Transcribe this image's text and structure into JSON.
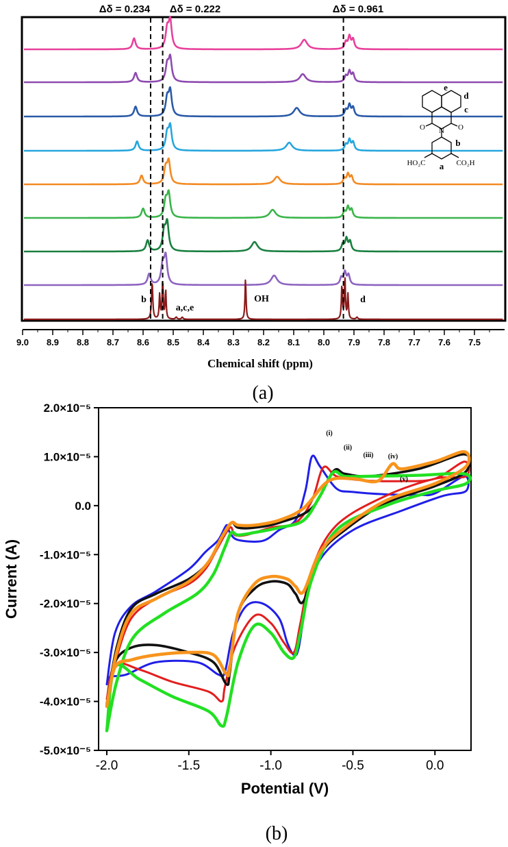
{
  "panel_a": {
    "label": "(a)",
    "xlabel": "Chemical shift (ppm)",
    "deltas": [
      "Δδ = 0.234",
      "Δδ = 0.222",
      "Δδ = 0.961"
    ],
    "peak_labels": [
      "b",
      "a,c,e",
      "OH",
      "d"
    ],
    "structure_labels": [
      "e",
      "d",
      "c",
      "b",
      "a",
      "HO₂C",
      "CO₂H",
      "O",
      "O",
      "N"
    ]
  },
  "panel_b": {
    "label": "(b)",
    "curve_labels": [
      "(i)",
      "(ii)",
      "(iii)",
      "(iv)",
      "(v)"
    ]
  },
  "chart_data": [
    {
      "type": "line",
      "title": "",
      "xlabel": "Chemical shift (ppm)",
      "ylabel": "",
      "xlim": [
        9.0,
        7.4
      ],
      "x_ticks": [
        "9.0",
        "8.9",
        "8.8",
        "8.7",
        "8.6",
        "8.5",
        "8.4",
        "8.3",
        "8.2",
        "8.1",
        "8.0",
        "7.9",
        "7.8",
        "7.7",
        "7.6",
        "7.5"
      ],
      "reference_lines_ppm": [
        8.575,
        8.535,
        7.935
      ],
      "series": [
        {
          "name": "top (pink)",
          "color": "#e8409b",
          "peaks_ppm": [
            8.63,
            8.51,
            8.065,
            7.915
          ]
        },
        {
          "name": "purple",
          "color": "#8e4ab0",
          "peaks_ppm": [
            8.625,
            8.51,
            8.07,
            7.915
          ]
        },
        {
          "name": "dark blue",
          "color": "#2a5aa8",
          "peaks_ppm": [
            8.625,
            8.51,
            8.09,
            7.915
          ]
        },
        {
          "name": "light blue",
          "color": "#26a6de",
          "peaks_ppm": [
            8.62,
            8.51,
            8.115,
            7.915
          ]
        },
        {
          "name": "orange",
          "color": "#f28a24",
          "peaks_ppm": [
            8.605,
            8.515,
            8.155,
            7.92
          ]
        },
        {
          "name": "green",
          "color": "#3ab54a",
          "peaks_ppm": [
            8.6,
            8.515,
            8.17,
            7.92
          ]
        },
        {
          "name": "dark green",
          "color": "#1a8040",
          "peaks_ppm": [
            8.585,
            8.52,
            8.23,
            7.925
          ]
        },
        {
          "name": "violet",
          "color": "#8e64c0",
          "peaks_ppm": [
            8.58,
            8.525,
            8.165,
            7.93
          ]
        },
        {
          "name": "bottom (dark red)",
          "color": "#8b1a1a",
          "peaks_ppm": [
            8.565,
            8.535,
            8.26,
            7.935
          ]
        }
      ]
    },
    {
      "type": "line",
      "title": "",
      "xlabel": "Potential (V)",
      "ylabel": "Current (A)",
      "xlim": [
        -2.05,
        0.22
      ],
      "ylim": [
        -5e-05,
        2e-05
      ],
      "x_ticks": [
        "-2.0",
        "-1.5",
        "-1.0",
        "-0.5",
        "0.0"
      ],
      "y_ticks": [
        "2.0×10⁻⁵",
        "1.0×10⁻⁵",
        "0.0",
        "-1.0×10⁻⁵",
        "-2.0×10⁻⁵",
        "-3.0×10⁻⁵",
        "-4.0×10⁻⁵",
        "-5.0×10⁻⁵"
      ],
      "series": [
        {
          "name": "blue",
          "color": "#1f1fe8",
          "peak_potentials": [
            -0.74,
            -1.28,
            -0.85
          ],
          "peak_currents": [
            1.05e-05,
            -3.4e-05,
            -3.1e-05
          ]
        },
        {
          "name": "red",
          "color": "#e21e1e",
          "peak_potentials": [
            -0.68,
            -1.3,
            -0.85
          ],
          "peak_currents": [
            8e-06,
            -4.05e-05,
            -3.05e-05
          ]
        },
        {
          "name": "green",
          "color": "#22e022",
          "peak_potentials": [
            -0.62,
            -1.3,
            -0.85
          ],
          "peak_currents": [
            7e-06,
            -4.5e-05,
            -3.1e-05
          ]
        },
        {
          "name": "black",
          "color": "#111111",
          "peak_potentials": [
            -0.62,
            -1.27,
            -0.8
          ],
          "peak_currents": [
            7e-06,
            -3.65e-05,
            -2e-05
          ]
        },
        {
          "name": "orange",
          "color": "#f7941d",
          "peak_potentials": [
            -0.26,
            -1.27,
            -0.8
          ],
          "peak_currents": [
            8.5e-06,
            -3.45e-05,
            -1.75e-05
          ]
        }
      ]
    }
  ]
}
